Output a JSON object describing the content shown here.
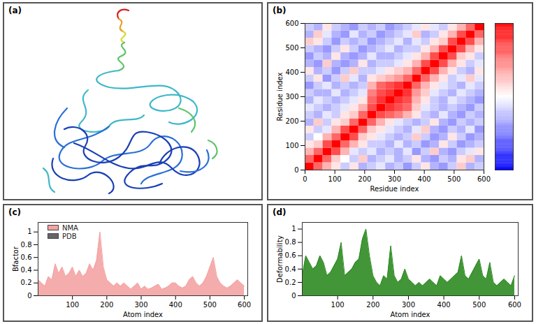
{
  "chart_data": [
    {
      "panel": "(a)",
      "type": "structure"
    },
    {
      "panel": "(b)",
      "type": "heatmap",
      "xlabel": "Residue index",
      "ylabel": "Residue index",
      "xlim": [
        0,
        600
      ],
      "ylim": [
        0,
        600
      ],
      "xticks": [
        0,
        100,
        200,
        300,
        400,
        500,
        600
      ],
      "yticks": [
        0,
        100,
        200,
        300,
        400,
        500,
        600
      ],
      "bins": [
        0,
        30,
        60,
        90,
        120,
        150,
        180,
        210,
        240,
        270,
        300,
        330,
        360,
        390,
        420,
        450,
        480,
        510,
        540,
        570,
        600
      ],
      "cells": [
        [
          1,
          0.6,
          0.3,
          0.1,
          -0.2,
          0.1,
          -0.3,
          -0.2,
          -0.1,
          -0.3,
          -0.2,
          -0.4,
          -0.2,
          0.1,
          -0.3,
          -0.4,
          -0.2,
          0.2,
          -0.3,
          -0.2
        ],
        [
          0.6,
          1,
          0.6,
          0.2,
          0.0,
          -0.2,
          0.2,
          -0.3,
          -0.2,
          -0.1,
          -0.3,
          -0.2,
          0.1,
          -0.3,
          -0.4,
          -0.2,
          -0.3,
          0.1,
          0.2,
          -0.3
        ],
        [
          0.3,
          0.6,
          1,
          0.7,
          0.3,
          -0.1,
          -0.2,
          -0.1,
          -0.3,
          -0.2,
          -0.3,
          -0.1,
          -0.4,
          -0.2,
          0.2,
          -0.3,
          -0.4,
          -0.2,
          -0.1,
          0.1
        ],
        [
          0.1,
          0.2,
          0.7,
          1,
          0.6,
          0.3,
          0.1,
          -0.2,
          -0.2,
          -0.3,
          -0.1,
          -0.3,
          -0.2,
          -0.4,
          -0.3,
          0.1,
          -0.2,
          -0.4,
          -0.3,
          -0.2
        ],
        [
          -0.2,
          0.0,
          0.3,
          0.6,
          1,
          0.7,
          0.2,
          0.1,
          -0.1,
          -0.2,
          -0.3,
          -0.2,
          0.2,
          -0.2,
          -0.4,
          -0.3,
          0.1,
          -0.2,
          -0.4,
          -0.3
        ],
        [
          0.1,
          -0.2,
          -0.1,
          0.3,
          0.7,
          1,
          0.6,
          0.2,
          0.1,
          -0.1,
          -0.2,
          -0.3,
          -0.1,
          0.2,
          -0.3,
          -0.4,
          -0.2,
          -0.3,
          -0.1,
          -0.4
        ],
        [
          -0.3,
          0.2,
          -0.2,
          0.1,
          0.2,
          0.6,
          1,
          0.6,
          0.3,
          0.1,
          -0.1,
          -0.2,
          -0.3,
          -0.2,
          0.1,
          -0.3,
          -0.4,
          -0.2,
          -0.3,
          -0.2
        ],
        [
          -0.2,
          -0.3,
          -0.1,
          -0.2,
          0.1,
          0.2,
          0.6,
          1,
          0.7,
          0.6,
          0.5,
          0.3,
          0.1,
          -0.2,
          -0.3,
          -0.1,
          -0.3,
          -0.4,
          -0.2,
          -0.3
        ],
        [
          -0.1,
          -0.2,
          -0.3,
          -0.2,
          -0.1,
          0.1,
          0.3,
          0.7,
          1,
          0.8,
          0.7,
          0.6,
          0.2,
          -0.1,
          -0.2,
          -0.3,
          -0.2,
          -0.3,
          -0.4,
          -0.2
        ],
        [
          -0.3,
          -0.1,
          -0.2,
          -0.3,
          -0.2,
          -0.1,
          0.1,
          0.6,
          0.8,
          1,
          0.8,
          0.7,
          0.3,
          0.1,
          -0.2,
          -0.3,
          -0.1,
          -0.2,
          -0.3,
          -0.4
        ],
        [
          -0.2,
          -0.3,
          -0.3,
          -0.1,
          -0.3,
          -0.2,
          -0.1,
          0.5,
          0.7,
          0.8,
          1,
          0.8,
          0.4,
          0.2,
          -0.1,
          -0.2,
          -0.3,
          -0.1,
          -0.2,
          -0.3
        ],
        [
          -0.4,
          -0.2,
          -0.1,
          -0.3,
          -0.2,
          -0.3,
          -0.2,
          0.3,
          0.6,
          0.7,
          0.8,
          1,
          0.6,
          0.3,
          0.1,
          -0.1,
          -0.2,
          -0.3,
          -0.1,
          -0.2
        ],
        [
          -0.2,
          0.1,
          -0.4,
          -0.2,
          0.2,
          -0.1,
          -0.3,
          0.1,
          0.2,
          0.3,
          0.4,
          0.6,
          1,
          0.6,
          0.3,
          0.1,
          -0.2,
          -0.1,
          0.2,
          -0.1
        ],
        [
          0.1,
          -0.3,
          -0.2,
          -0.4,
          -0.2,
          0.2,
          -0.2,
          -0.2,
          -0.1,
          0.1,
          0.2,
          0.3,
          0.6,
          1,
          0.7,
          0.3,
          0.1,
          -0.2,
          -0.3,
          0.1
        ],
        [
          -0.3,
          -0.4,
          0.2,
          -0.3,
          -0.4,
          -0.3,
          0.1,
          -0.3,
          -0.2,
          -0.2,
          -0.1,
          0.1,
          0.3,
          0.7,
          1,
          0.7,
          0.3,
          0.1,
          -0.2,
          -0.1
        ],
        [
          -0.4,
          -0.2,
          -0.3,
          0.1,
          -0.3,
          -0.4,
          -0.3,
          -0.1,
          -0.3,
          -0.3,
          -0.2,
          -0.1,
          0.1,
          0.3,
          0.7,
          1,
          0.7,
          0.2,
          0.1,
          -0.2
        ],
        [
          -0.2,
          -0.3,
          -0.4,
          -0.2,
          0.1,
          -0.2,
          -0.4,
          -0.3,
          -0.2,
          -0.1,
          -0.3,
          -0.2,
          -0.2,
          0.1,
          0.3,
          0.7,
          1,
          0.7,
          0.3,
          0.1
        ],
        [
          0.2,
          0.1,
          -0.2,
          -0.4,
          -0.2,
          -0.3,
          -0.2,
          -0.4,
          -0.3,
          -0.2,
          -0.1,
          -0.3,
          -0.1,
          -0.2,
          0.1,
          0.2,
          0.7,
          1,
          0.7,
          0.3
        ],
        [
          -0.3,
          0.2,
          -0.1,
          -0.3,
          -0.4,
          -0.1,
          -0.3,
          -0.2,
          -0.4,
          -0.3,
          -0.2,
          -0.1,
          0.2,
          -0.3,
          -0.2,
          0.1,
          0.3,
          0.7,
          1,
          0.6
        ],
        [
          -0.2,
          -0.3,
          0.1,
          -0.2,
          -0.3,
          -0.4,
          -0.2,
          -0.3,
          -0.2,
          -0.4,
          -0.3,
          -0.2,
          -0.1,
          0.1,
          -0.1,
          -0.2,
          0.1,
          0.3,
          0.6,
          1
        ]
      ],
      "colorbar": {
        "range": [
          -1,
          1
        ],
        "ticks": []
      }
    },
    {
      "panel": "(c)",
      "type": "area",
      "xlabel": "Atom index",
      "ylabel": "Bfactor",
      "xlim": [
        0,
        610
      ],
      "ylim": [
        0,
        1.15
      ],
      "xticks": [
        100,
        200,
        300,
        400,
        500,
        600
      ],
      "yticks": [
        0,
        0.2,
        0.4,
        0.6,
        0.8,
        1
      ],
      "legend": "top-left",
      "x": [
        0,
        10,
        20,
        30,
        40,
        50,
        60,
        70,
        80,
        90,
        100,
        110,
        120,
        130,
        140,
        150,
        160,
        170,
        180,
        190,
        200,
        210,
        220,
        230,
        240,
        250,
        260,
        270,
        280,
        290,
        300,
        310,
        320,
        330,
        340,
        350,
        360,
        370,
        380,
        390,
        400,
        410,
        420,
        430,
        440,
        450,
        460,
        470,
        480,
        490,
        500,
        510,
        520,
        530,
        540,
        550,
        560,
        570,
        580,
        590,
        600
      ],
      "series": [
        {
          "name": "NMA",
          "color": "#f4a3a3",
          "values": [
            0.25,
            0.2,
            0.15,
            0.3,
            0.25,
            0.5,
            0.35,
            0.45,
            0.3,
            0.35,
            0.45,
            0.3,
            0.4,
            0.3,
            0.35,
            0.5,
            0.4,
            0.55,
            1.0,
            0.45,
            0.25,
            0.2,
            0.15,
            0.2,
            0.15,
            0.2,
            0.15,
            0.1,
            0.15,
            0.2,
            0.1,
            0.15,
            0.1,
            0.12,
            0.15,
            0.18,
            0.1,
            0.12,
            0.15,
            0.2,
            0.2,
            0.15,
            0.12,
            0.15,
            0.25,
            0.3,
            0.2,
            0.15,
            0.2,
            0.3,
            0.45,
            0.6,
            0.3,
            0.2,
            0.15,
            0.12,
            0.15,
            0.2,
            0.25,
            0.2,
            0.15
          ]
        },
        {
          "name": "PDB",
          "color": "#666666",
          "values": [
            null,
            null,
            null,
            null,
            null,
            null,
            null,
            null,
            null,
            null,
            null,
            null,
            null,
            null,
            null,
            null,
            null,
            null,
            null,
            null,
            null,
            null,
            null,
            null,
            null,
            null,
            null,
            null,
            null,
            null,
            null,
            null,
            null,
            null,
            null,
            null,
            null,
            null,
            null,
            null,
            null,
            null,
            null,
            null,
            null,
            null,
            null,
            null,
            null,
            null,
            null,
            null,
            null,
            null,
            null,
            null,
            null,
            null,
            null,
            null,
            null
          ]
        }
      ]
    },
    {
      "panel": "(d)",
      "type": "area",
      "xlabel": "Atom index",
      "ylabel": "Deformability",
      "xlim": [
        0,
        610
      ],
      "ylim": [
        0,
        1.1
      ],
      "xticks": [
        100,
        200,
        300,
        400,
        500,
        600
      ],
      "yticks": [
        0,
        0.2,
        0.4,
        0.6,
        0.8,
        1
      ],
      "x": [
        0,
        10,
        20,
        30,
        40,
        50,
        60,
        70,
        80,
        90,
        100,
        110,
        120,
        130,
        140,
        150,
        160,
        170,
        180,
        190,
        200,
        210,
        220,
        230,
        240,
        250,
        260,
        270,
        280,
        290,
        300,
        310,
        320,
        330,
        340,
        350,
        360,
        370,
        380,
        390,
        400,
        410,
        420,
        430,
        440,
        450,
        460,
        470,
        480,
        490,
        500,
        510,
        520,
        530,
        540,
        550,
        560,
        570,
        580,
        590,
        600
      ],
      "series": [
        {
          "name": "Deformability",
          "color": "#2e8b22",
          "values": [
            0.3,
            0.6,
            0.5,
            0.4,
            0.45,
            0.6,
            0.5,
            0.3,
            0.35,
            0.45,
            0.55,
            0.8,
            0.3,
            0.35,
            0.4,
            0.5,
            0.55,
            0.85,
            1.0,
            0.6,
            0.3,
            0.2,
            0.15,
            0.3,
            0.25,
            0.75,
            0.3,
            0.2,
            0.25,
            0.4,
            0.25,
            0.2,
            0.15,
            0.2,
            0.15,
            0.2,
            0.25,
            0.2,
            0.15,
            0.3,
            0.25,
            0.2,
            0.25,
            0.3,
            0.35,
            0.6,
            0.3,
            0.25,
            0.35,
            0.45,
            0.55,
            0.3,
            0.25,
            0.5,
            0.2,
            0.15,
            0.2,
            0.25,
            0.2,
            0.15,
            0.3
          ]
        }
      ]
    }
  ]
}
